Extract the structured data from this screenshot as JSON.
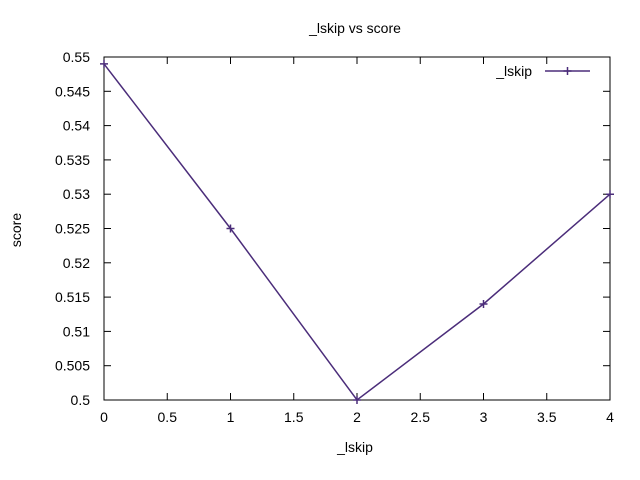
{
  "chart_data": {
    "type": "line",
    "title": "_lskip vs score",
    "xlabel": "_lskip",
    "ylabel": "score",
    "xlim": [
      0,
      4
    ],
    "ylim": [
      0.5,
      0.55
    ],
    "x_ticks": [
      "0",
      "0.5",
      "1",
      "1.5",
      "2",
      "2.5",
      "3",
      "3.5",
      "4"
    ],
    "y_ticks": [
      "0.5",
      "0.505",
      "0.51",
      "0.515",
      "0.52",
      "0.525",
      "0.53",
      "0.535",
      "0.54",
      "0.545",
      "0.55"
    ],
    "grid": false,
    "legend_position": "top-right",
    "series": [
      {
        "name": "_lskip",
        "color": "#4b2d7a",
        "marker": "plus",
        "x": [
          0,
          1,
          2,
          3,
          4
        ],
        "y": [
          0.549,
          0.525,
          0.5,
          0.514,
          0.53
        ]
      }
    ]
  }
}
